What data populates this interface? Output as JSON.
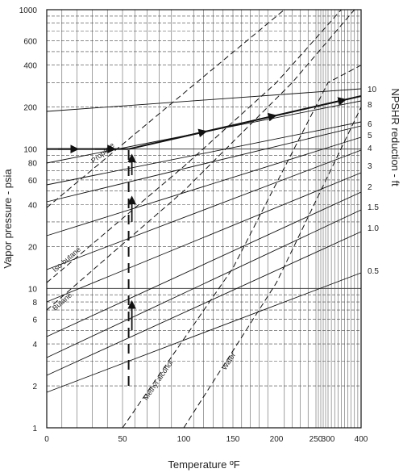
{
  "chart_data": {
    "type": "line",
    "xlabel": "Temperature ºF",
    "ylabel": "Vapor pressure - psia",
    "y2label": "NPSHR reduction - ft",
    "xlim": [
      0,
      400
    ],
    "ylim": [
      1,
      1000
    ],
    "yscale": "log",
    "xscale": "nonlinear (vapor-pressure chart scale)",
    "grid": true,
    "x_ticks": [
      {
        "value": 0,
        "label": "0"
      },
      {
        "value": 50,
        "label": "50"
      },
      {
        "value": 100,
        "label": "100"
      },
      {
        "value": 150,
        "label": "150"
      },
      {
        "value": 200,
        "label": "200"
      },
      {
        "value": 250,
        "label": "250"
      },
      {
        "value": 300,
        "label": "300"
      },
      {
        "value": 400,
        "label": "400"
      }
    ],
    "y_ticks": [
      {
        "value": 1,
        "label": "1"
      },
      {
        "value": 2,
        "label": "2"
      },
      {
        "value": 4,
        "label": "4"
      },
      {
        "value": 6,
        "label": "6"
      },
      {
        "value": 8,
        "label": "8"
      },
      {
        "value": 10,
        "label": "10"
      },
      {
        "value": 20,
        "label": "20"
      },
      {
        "value": 40,
        "label": "40"
      },
      {
        "value": 60,
        "label": "60"
      },
      {
        "value": 80,
        "label": "80"
      },
      {
        "value": 100,
        "label": "100"
      },
      {
        "value": 200,
        "label": "200"
      },
      {
        "value": 400,
        "label": "400"
      },
      {
        "value": 600,
        "label": "600"
      },
      {
        "value": 1000,
        "label": "1000"
      }
    ],
    "right_ticks": [
      "10",
      "8",
      "6",
      "5",
      "4",
      "3",
      "2",
      "1.5",
      "1.0",
      "0.5"
    ],
    "series": [
      {
        "name": "Propane",
        "style": "dashed",
        "points": [
          [
            0,
            38
          ],
          [
            120,
            330
          ],
          [
            210,
            1000
          ]
        ]
      },
      {
        "name": "Iso-butane",
        "style": "dashed",
        "points": [
          [
            0,
            11
          ],
          [
            100,
            75
          ],
          [
            200,
            300
          ],
          [
            340,
            1000
          ]
        ]
      },
      {
        "name": "Butane",
        "style": "dashed",
        "points": [
          [
            0,
            7
          ],
          [
            100,
            50
          ],
          [
            220,
            300
          ],
          [
            380,
            1000
          ]
        ]
      },
      {
        "name": "Methyl alcohol",
        "style": "dashed",
        "points": [
          [
            50,
            1
          ],
          [
            150,
            14
          ],
          [
            300,
            300
          ],
          [
            400,
            400
          ]
        ]
      },
      {
        "name": "Water",
        "style": "dashed",
        "points": [
          [
            100,
            1
          ],
          [
            200,
            11
          ],
          [
            400,
            200
          ]
        ]
      }
    ],
    "example_path": [
      [
        0,
        100
      ],
      [
        55,
        100
      ],
      [
        55,
        2
      ],
      [
        55,
        100
      ],
      [
        400,
        240
      ]
    ]
  }
}
